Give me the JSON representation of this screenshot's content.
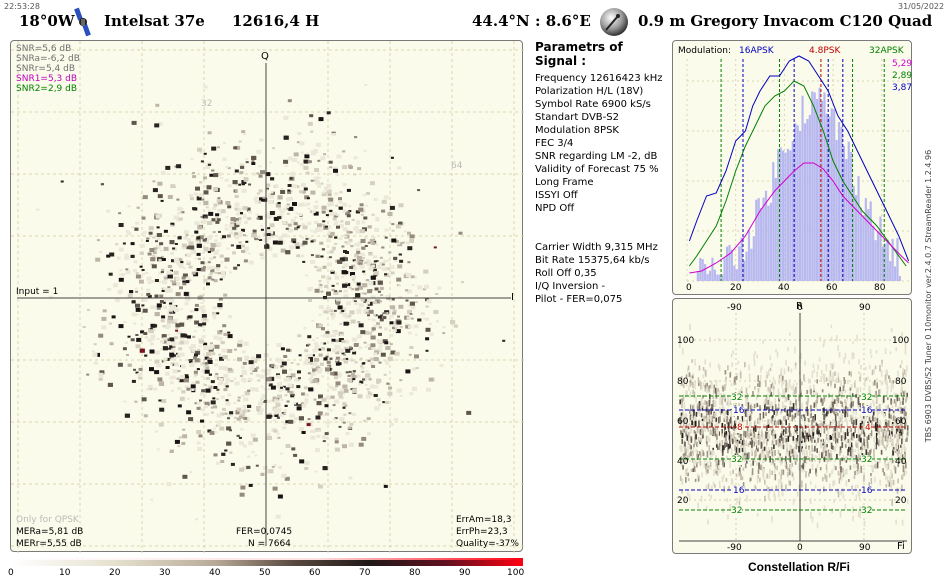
{
  "header": {
    "time": "22:53:28",
    "date": "31/05/2022",
    "orbital_position": "18°0W",
    "satellite": "Intelsat 37e",
    "frequency_pol": "12616,4  H",
    "location": "44.4°N : 8.6°E",
    "equipment": "0.9 m Gregory  Invacom C120 Quad"
  },
  "constellation": {
    "axis_q": "Q",
    "axis_i": "I",
    "grid_label": "32",
    "grid_label_2": "64",
    "snr_lines": [
      {
        "text": "SNR=5,6 dB",
        "color": "#707070"
      },
      {
        "text": "SNRa=-6,2 dB",
        "color": "#707070"
      },
      {
        "text": "SNRr=5,4 dB",
        "color": "#707070"
      },
      {
        "text": "SNR1=5,3 dB",
        "color": "#c000c0"
      },
      {
        "text": "SNR2=2,9 dB",
        "color": "#008000"
      }
    ],
    "input": "Input = 1",
    "only_qpsk": "Only for QPSK",
    "mera": "MERa=5,81 dB",
    "merr": "MERr=5,55 dB",
    "fer": "FER=0,0745",
    "n": "N = 7664",
    "erram": "ErrAm=18,3",
    "errph": "ErrPh=23,3",
    "quality": "Quality=-37%"
  },
  "params": {
    "title": "Parametrs of Signal :",
    "rows": [
      "Frequency  12616423 kHz",
      "Polarization  H/L (18V)",
      "Symbol Rate  6900 kS/s",
      "Standart  DVB-S2",
      "Modulation   8PSK",
      "FEC  3/4",
      "SNR regarding LM  -2, dB",
      "Validity of Forecast  75 %",
      "Long  Frame",
      "ISSYI  Off",
      "NPD   Off"
    ],
    "rows2": [
      "Carrier Width   9,315 MHz",
      "Bit Rate   15375,64 kb/s",
      "Roll Off   0,35",
      "I/Q Inversion    -",
      "Pilot    -       FER=0,075"
    ]
  },
  "histogram": {
    "modulation_label": "Modulation:",
    "m1": "16APSK",
    "m2": "4.8PSK",
    "m3": "32APSK",
    "v1": "5,29",
    "v2": "2,89",
    "v3": "3,87",
    "xticks": [
      "0",
      "20",
      "40",
      "60",
      "80"
    ],
    "colors": {
      "blue": "#0000c0",
      "red": "#c00000",
      "green": "#008000",
      "magenta": "#d000d0"
    }
  },
  "rfi": {
    "title": "Constellation  R/Fi",
    "axis_r": "R",
    "axis_fi": "Fi",
    "top_ticks": [
      "-90",
      "0",
      "90"
    ],
    "bottom_ticks": [
      "-90",
      "0",
      "90"
    ],
    "y_ticks": [
      "100",
      "80",
      "60",
      "40",
      "20"
    ],
    "ring_32": "32",
    "ring_16": "16",
    "ring_8": "8",
    "ring_4": "4"
  },
  "side_text": "TBS 6903 DVBS/S2 Tuner 0   10monitor  ver.2.4.0.7    StreamReader 1.2.4.96",
  "colorbar": {
    "labels": [
      "0",
      "10",
      "20",
      "30",
      "40",
      "50",
      "60",
      "70",
      "80",
      "90",
      "100"
    ]
  }
}
